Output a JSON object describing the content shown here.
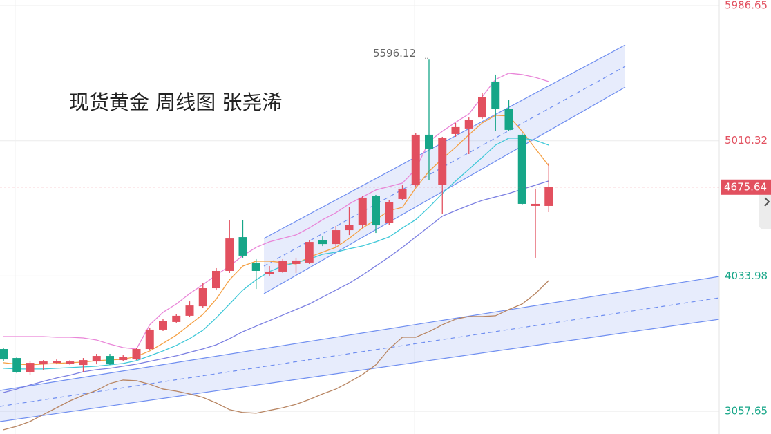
{
  "chart_data": {
    "type": "candlestick",
    "title": "现货黄金 周线图 张尧浠",
    "ylim": [
      2893.47,
      6026.56
    ],
    "yticks": [
      3057.65,
      4033.98,
      5010.32,
      5986.65
    ],
    "grid": true,
    "up_color": "#e2505f",
    "down_color": "#16a688",
    "candles": {
      "open": [
        3507,
        3442,
        3342,
        3397,
        3407,
        3402,
        3392,
        3417,
        3457,
        3427,
        3432,
        3507,
        3647,
        3702,
        3747,
        3816,
        3946,
        4071,
        4315,
        4131,
        4046,
        4066,
        4121,
        4131,
        4295,
        4265,
        4365,
        4400,
        4610,
        4420,
        4590,
        4694,
        5054,
        4694,
        5059,
        5099,
        5178,
        5438,
        5243,
        5054,
        4540,
        4540
      ],
      "high": [
        3517,
        3452,
        3422,
        3427,
        3432,
        3427,
        3442,
        3472,
        3472,
        3462,
        3517,
        3662,
        3722,
        3757,
        3851,
        3981,
        4091,
        4440,
        4440,
        4156,
        4106,
        4156,
        4166,
        4295,
        4320,
        4395,
        4530,
        4610,
        4620,
        4580,
        4689,
        5064,
        5596.12,
        5039,
        5139,
        5178,
        5353,
        5488,
        5303,
        5064,
        4665,
        4849
      ],
      "low": [
        3422,
        3332,
        3318,
        3357,
        3397,
        3392,
        3342,
        3397,
        3392,
        3422,
        3427,
        3497,
        3637,
        3692,
        3737,
        3806,
        3931,
        4056,
        4166,
        3941,
        4031,
        4056,
        4056,
        4121,
        4250,
        4245,
        4330,
        4380,
        4345,
        4405,
        4580,
        4680,
        4729,
        4480,
        5039,
        4914,
        5168,
        5079,
        5079,
        4545,
        4166,
        4495
      ],
      "close": [
        3432,
        3342,
        3407,
        3417,
        3422,
        3417,
        3427,
        3457,
        3397,
        3452,
        3507,
        3647,
        3707,
        3747,
        3821,
        3946,
        4071,
        4305,
        4181,
        4071,
        4066,
        4141,
        4146,
        4280,
        4265,
        4365,
        4405,
        4600,
        4400,
        4565,
        4665,
        5054,
        4954,
        5029,
        5109,
        5163,
        5328,
        5243,
        5089,
        4555,
        4555,
        4675.64
      ]
    },
    "series": [
      {
        "color": "#e985d8",
        "values": [
          3597,
          3597,
          3597,
          3597,
          3592,
          3592,
          3587,
          3572,
          3542,
          3517,
          3507,
          3682,
          3772,
          3832,
          3907,
          3972,
          4041,
          4106,
          4181,
          4241,
          4281,
          4306,
          4331,
          4381,
          4441,
          4491,
          4555,
          4605,
          4655,
          4680,
          4705,
          4805,
          5005,
          5079,
          5144,
          5204,
          5329,
          5453,
          5498,
          5488,
          5468,
          5438
        ]
      },
      {
        "color": "#f5a043",
        "values": [
          3408,
          3398,
          3393,
          3398,
          3403,
          3408,
          3413,
          3423,
          3428,
          3433,
          3453,
          3493,
          3548,
          3607,
          3682,
          3757,
          3867,
          4007,
          4106,
          4141,
          4141,
          4131,
          4121,
          4171,
          4206,
          4241,
          4306,
          4381,
          4441,
          4506,
          4530,
          4670,
          4790,
          4880,
          4964,
          5054,
          5139,
          5194,
          5189,
          5079,
          4954,
          4830
        ]
      },
      {
        "color": "#3fc8d8",
        "values": [
          3368,
          3363,
          3363,
          3363,
          3368,
          3373,
          3378,
          3383,
          3393,
          3403,
          3423,
          3458,
          3493,
          3533,
          3582,
          3642,
          3732,
          3832,
          3932,
          4007,
          4066,
          4106,
          4131,
          4156,
          4191,
          4206,
          4231,
          4251,
          4281,
          4316,
          4381,
          4441,
          4530,
          4630,
          4720,
          4805,
          4890,
          4979,
          5029,
          5029,
          5014,
          4979
        ]
      },
      {
        "color": "#7c80e2",
        "values": [
          3193,
          3218,
          3248,
          3273,
          3298,
          3318,
          3343,
          3358,
          3368,
          3383,
          3398,
          3418,
          3438,
          3458,
          3483,
          3508,
          3537,
          3582,
          3632,
          3672,
          3712,
          3752,
          3792,
          3832,
          3882,
          3932,
          3982,
          4041,
          4106,
          4171,
          4241,
          4316,
          4391,
          4466,
          4506,
          4545,
          4580,
          4605,
          4630,
          4660,
          4690,
          4720
        ]
      },
      {
        "color": "#b88562",
        "values": [
          2924,
          2949,
          2984,
          3034,
          3083,
          3133,
          3173,
          3208,
          3258,
          3283,
          3278,
          3253,
          3218,
          3203,
          3183,
          3158,
          3118,
          3069,
          3049,
          3044,
          3064,
          3083,
          3108,
          3143,
          3183,
          3218,
          3268,
          3323,
          3393,
          3507,
          3592,
          3592,
          3632,
          3682,
          3722,
          3742,
          3742,
          3747,
          3792,
          3832,
          3907,
          4001
        ]
      }
    ]
  }
}
